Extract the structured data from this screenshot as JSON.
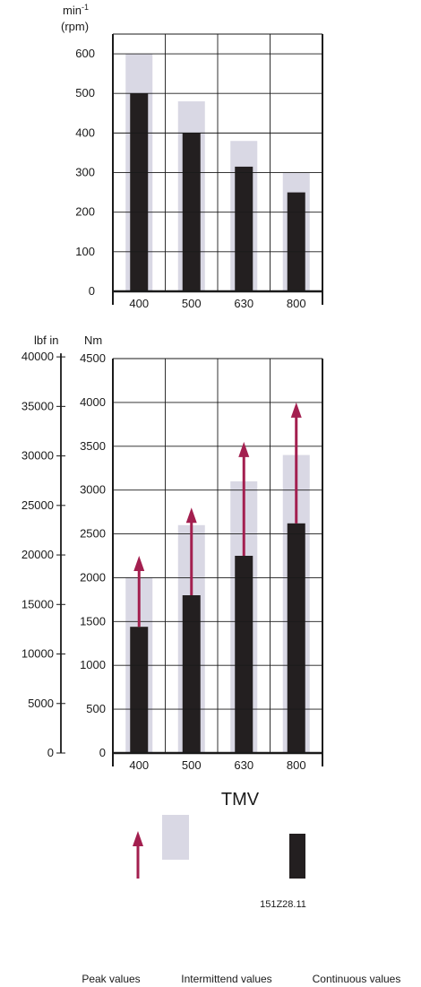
{
  "figure_code": "151Z28.11",
  "x_axis_title": "TMV",
  "colors": {
    "intermittent": "#d9d8e4",
    "continuous": "#231f20",
    "peak": "#a31f4f",
    "grid": "#1a1a1a"
  },
  "legend": {
    "peak": "Peak values",
    "intermittent": "Intermittend values",
    "continuous": "Continuous values"
  },
  "chart_data": [
    {
      "type": "bar",
      "categories": [
        "400",
        "500",
        "630",
        "800"
      ],
      "ylabel_line1": "min",
      "ylabel_sup": "-1",
      "ylabel_line2": "(rpm)",
      "ylim": [
        0,
        650
      ],
      "yticks": [
        0,
        100,
        200,
        300,
        400,
        500,
        600
      ],
      "grid": true,
      "series": [
        {
          "key": "intermittent",
          "values": [
            600,
            480,
            380,
            300
          ]
        },
        {
          "key": "continuous",
          "values": [
            500,
            400,
            315,
            250
          ]
        }
      ]
    },
    {
      "type": "bar",
      "categories": [
        "400",
        "500",
        "630",
        "800"
      ],
      "ylabel": "Nm",
      "ylabel_secondary": "lbf in",
      "ylim": [
        0,
        4500
      ],
      "yticks": [
        0,
        500,
        1000,
        1500,
        2000,
        2500,
        3000,
        3500,
        4000,
        4500
      ],
      "yticks_secondary": [
        0,
        5000,
        10000,
        15000,
        20000,
        25000,
        30000,
        35000,
        40000
      ],
      "secondary_factor": 8.8507,
      "grid": true,
      "series": [
        {
          "key": "intermittent",
          "values": [
            2000,
            2600,
            3100,
            3400
          ]
        },
        {
          "key": "continuous",
          "values": [
            1440,
            1800,
            2250,
            2620
          ]
        },
        {
          "key": "peak",
          "values": [
            2250,
            2800,
            3550,
            4000
          ]
        }
      ]
    }
  ]
}
